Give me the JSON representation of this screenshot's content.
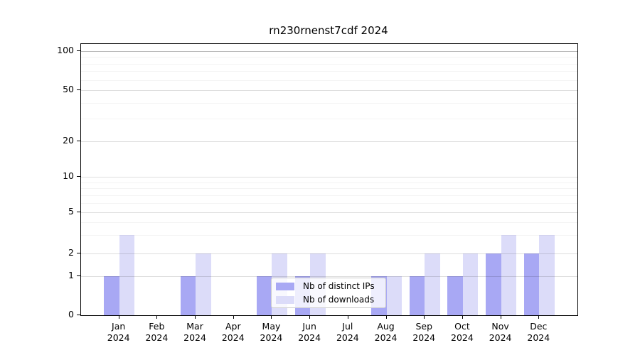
{
  "figure": {
    "title": "rn230rnenst7cdf 2024"
  },
  "chart_data": {
    "type": "bar",
    "title": "rn230rnenst7cdf 2024",
    "categories": [
      "Jan 2024",
      "Feb 2024",
      "Mar 2024",
      "Apr 2024",
      "May 2024",
      "Jun 2024",
      "Jul 2024",
      "Aug 2024",
      "Sep 2024",
      "Oct 2024",
      "Nov 2024",
      "Dec 2024"
    ],
    "series": [
      {
        "name": "Nb of distinct IPs",
        "color": "#a8a8f4",
        "values": [
          1,
          0,
          1,
          0,
          1,
          1,
          0,
          1,
          1,
          1,
          2,
          2
        ]
      },
      {
        "name": "Nb of downloads",
        "color": "#dcdcf9",
        "values": [
          3,
          0,
          2,
          0,
          2,
          2,
          0,
          1,
          2,
          2,
          3,
          3
        ]
      }
    ],
    "xlabel": "",
    "ylabel": "",
    "y_scale": "log-like (0,1,2,5,10,20,50,100)",
    "y_ticks": [
      0,
      1,
      2,
      5,
      10,
      20,
      50,
      100
    ],
    "y_minor_ticks": [
      3,
      4,
      6,
      7,
      8,
      9,
      30,
      40,
      60,
      70,
      80,
      90
    ],
    "ylim": [
      0,
      112
    ],
    "grid": true,
    "grid_over_bars": true,
    "legend_position": "lower center",
    "background_color": "#ffffff",
    "frame_color": "#000000"
  }
}
